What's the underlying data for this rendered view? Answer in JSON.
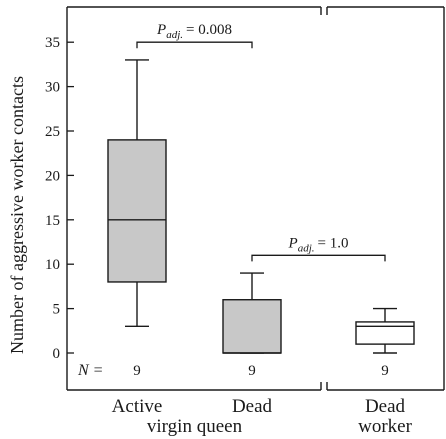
{
  "chart_data": {
    "type": "box",
    "ylabel": "Number of aggressive worker contacts",
    "ylim": [
      -3.5,
      38.5
    ],
    "yticks": [
      0,
      5,
      10,
      15,
      20,
      25,
      30,
      35
    ],
    "grid": false,
    "n_label": "N =",
    "groups": [
      {
        "label": "Active",
        "n": "9",
        "fill": "#c8c8c8",
        "whisker_low": 3,
        "q1": 8,
        "median": 15,
        "q3": 24,
        "whisker_high": 33
      },
      {
        "label": "Dead",
        "n": "9",
        "fill": "#c8c8c8",
        "whisker_low": 0,
        "q1": 0,
        "median": 0,
        "q3": 6,
        "whisker_high": 9
      },
      {
        "label": "Dead",
        "n": "9",
        "fill": "#ffffff",
        "whisker_low": 0,
        "q1": 1,
        "median": 3,
        "q3": 3.5,
        "whisker_high": 5
      }
    ],
    "group_labels": [
      {
        "text": "virgin queen",
        "spans": [
          0,
          1
        ]
      },
      {
        "text": "worker",
        "spans": [
          2,
          2
        ]
      }
    ],
    "comparisons": [
      {
        "between": [
          0,
          1
        ],
        "y": 35,
        "p_symbol": "P",
        "p_sub": "adj.",
        "p_value": "= 0.008"
      },
      {
        "between": [
          1,
          2
        ],
        "y": 11,
        "p_symbol": "P",
        "p_sub": "adj.",
        "p_value": "= 1.0"
      }
    ]
  }
}
